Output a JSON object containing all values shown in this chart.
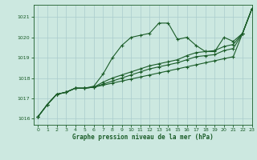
{
  "title": "Graphe pression niveau de la mer (hPa)",
  "background_color": "#cce8e0",
  "grid_color": "#aacccc",
  "line_color": "#1a5c28",
  "xlim": [
    -0.5,
    23
  ],
  "ylim": [
    1015.7,
    1021.6
  ],
  "yticks": [
    1016,
    1017,
    1018,
    1019,
    1020,
    1021
  ],
  "xticks": [
    0,
    1,
    2,
    3,
    4,
    5,
    6,
    7,
    8,
    9,
    10,
    11,
    12,
    13,
    14,
    15,
    16,
    17,
    18,
    19,
    20,
    21,
    22,
    23
  ],
  "series": [
    [
      1016.1,
      1016.7,
      1017.2,
      1017.3,
      1017.5,
      1017.5,
      1017.6,
      1018.2,
      1019.0,
      1019.6,
      1020.0,
      1020.1,
      1020.2,
      1020.7,
      1020.7,
      1019.9,
      1020.0,
      1019.6,
      1019.3,
      1019.3,
      1020.0,
      1019.8,
      1020.2,
      1021.4
    ],
    [
      1016.1,
      1016.7,
      1017.2,
      1017.3,
      1017.5,
      1017.5,
      1017.55,
      1017.65,
      1017.75,
      1017.85,
      1017.95,
      1018.05,
      1018.15,
      1018.25,
      1018.35,
      1018.45,
      1018.55,
      1018.65,
      1018.75,
      1018.85,
      1018.95,
      1019.05,
      1020.2,
      1021.4
    ],
    [
      1016.1,
      1016.7,
      1017.2,
      1017.3,
      1017.5,
      1017.5,
      1017.55,
      1017.7,
      1017.85,
      1018.0,
      1018.15,
      1018.3,
      1018.45,
      1018.55,
      1018.65,
      1018.75,
      1018.9,
      1019.05,
      1019.1,
      1019.15,
      1019.35,
      1019.45,
      1020.2,
      1021.4
    ],
    [
      1016.1,
      1016.7,
      1017.2,
      1017.3,
      1017.5,
      1017.5,
      1017.55,
      1017.8,
      1018.0,
      1018.15,
      1018.3,
      1018.45,
      1018.6,
      1018.7,
      1018.8,
      1018.9,
      1019.1,
      1019.25,
      1019.3,
      1019.35,
      1019.55,
      1019.65,
      1020.2,
      1021.4
    ]
  ]
}
